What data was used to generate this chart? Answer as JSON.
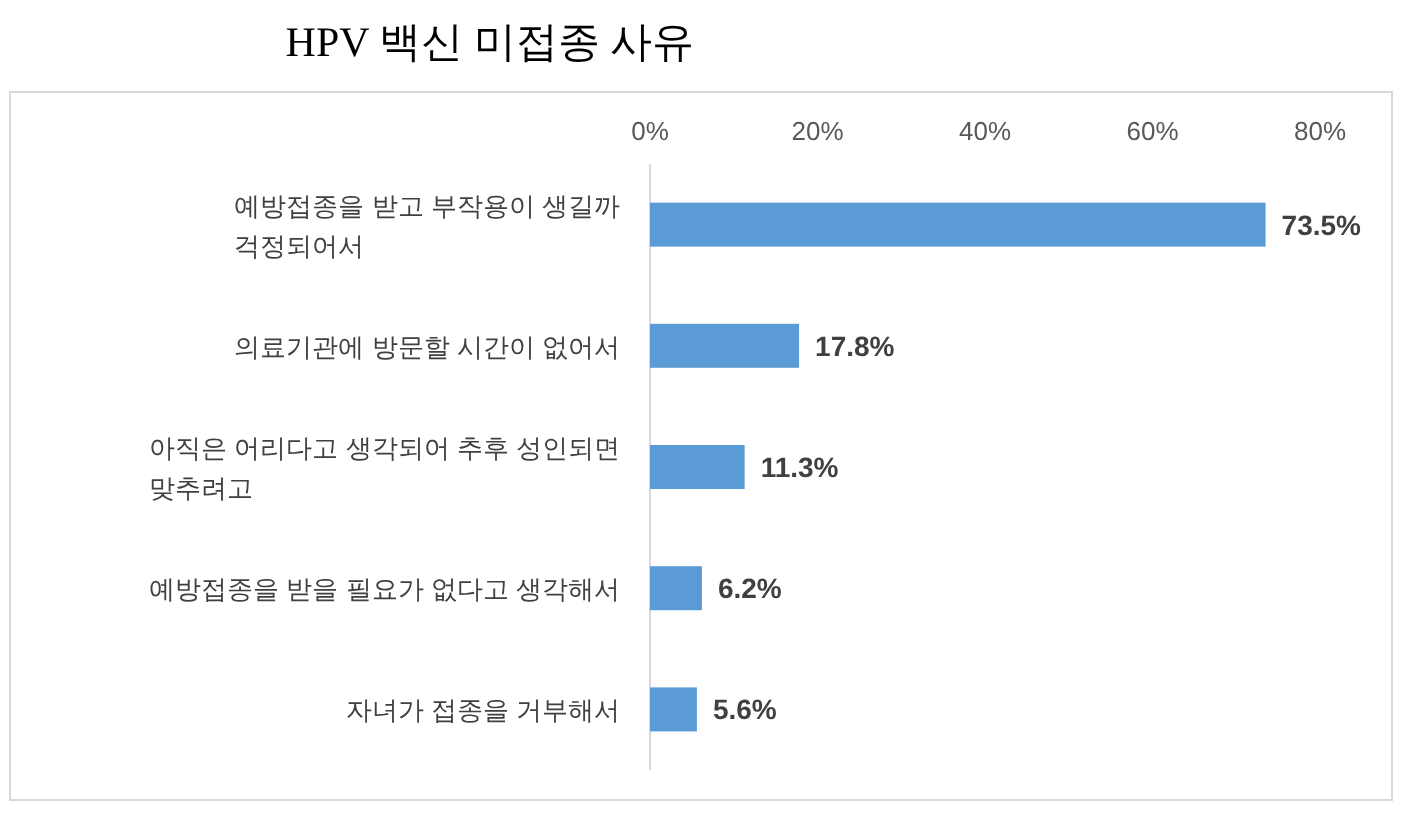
{
  "chart_data": {
    "type": "bar",
    "orientation": "horizontal",
    "title": "HPV 백신 미접종 사유",
    "categories": [
      "예방접종을 받고 부작용이 생길까 걱정되어서",
      "의료기관에 방문할 시간이 없어서",
      "아직은 어리다고 생각되어 추후 성인되면 맞추려고",
      "예방접종을 받을 필요가 없다고 생각해서",
      "자녀가 접종을 거부해서"
    ],
    "values": [
      73.5,
      17.8,
      11.3,
      6.2,
      5.6
    ],
    "value_labels": [
      "73.5%",
      "17.8%",
      "11.3%",
      "6.2%",
      "5.6%"
    ],
    "color": "#5b9bd5",
    "xlim": [
      0,
      80
    ],
    "xticks": [
      {
        "value": 0,
        "label": "0%"
      },
      {
        "value": 20,
        "label": "20%"
      },
      {
        "value": 40,
        "label": "40%"
      },
      {
        "value": 60,
        "label": "60%"
      },
      {
        "value": 80,
        "label": "80%"
      }
    ],
    "grid": false
  }
}
